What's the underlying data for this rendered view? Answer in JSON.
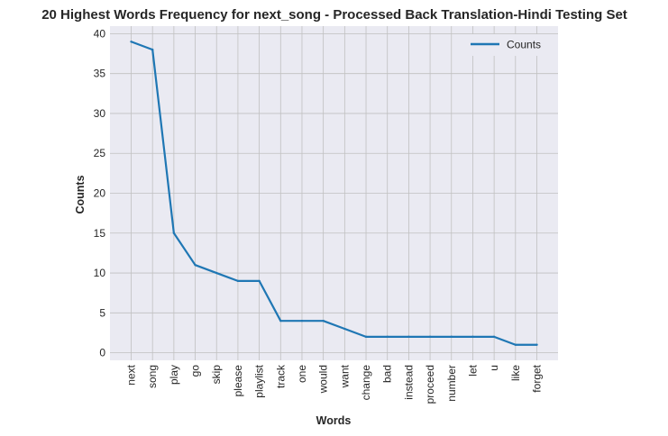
{
  "chart_data": {
    "type": "line",
    "title": "20 Highest Words Frequency for next_song - Processed Back Translation-Hindi Testing Set",
    "xlabel": "Words",
    "ylabel": "Counts",
    "categories": [
      "next",
      "song",
      "play",
      "go",
      "skip",
      "please",
      "playlist",
      "track",
      "one",
      "would",
      "want",
      "change",
      "bad",
      "instead",
      "proceed",
      "number",
      "let",
      "u",
      "like",
      "forget"
    ],
    "series": [
      {
        "name": "Counts",
        "values": [
          39,
          38,
          15,
          11,
          10,
          9,
          9,
          4,
          4,
          4,
          3,
          2,
          2,
          2,
          2,
          2,
          2,
          2,
          1,
          1
        ],
        "color": "#1f77b4"
      }
    ],
    "yticks": [
      0,
      5,
      10,
      15,
      20,
      25,
      30,
      35,
      40
    ],
    "ylim": [
      -0.95,
      40.95
    ],
    "grid": true,
    "legend_position": "top-right",
    "plot_background": "#eaeaf2",
    "grid_color": "#c0c0c0"
  }
}
